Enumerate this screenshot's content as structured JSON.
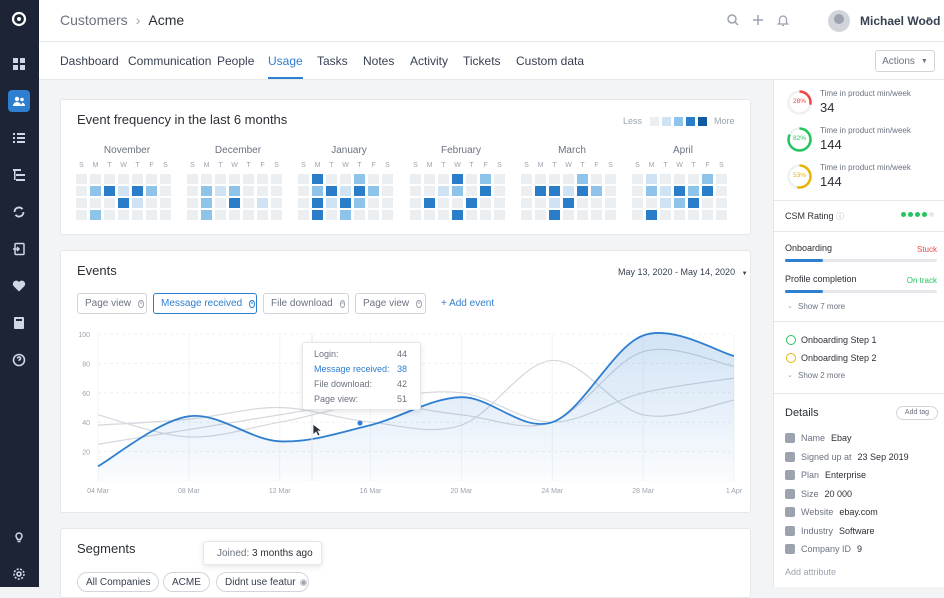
{
  "breadcrumb": {
    "parent": "Customers",
    "current": "Acme"
  },
  "user": {
    "name": "Michael Wood"
  },
  "tabs": [
    {
      "label": "Dashboard"
    },
    {
      "label": "Communication"
    },
    {
      "label": "People"
    },
    {
      "label": "Usage"
    },
    {
      "label": "Tasks"
    },
    {
      "label": "Notes"
    },
    {
      "label": "Activity"
    },
    {
      "label": "Tickets"
    },
    {
      "label": "Custom data"
    }
  ],
  "active_tab": "Usage",
  "actions_label": "Actions",
  "heatmap": {
    "title": "Event frequency in the last 6 months",
    "legend_less": "Less",
    "legend_more": "More",
    "weekdays": [
      "S",
      "M",
      "T",
      "W",
      "T",
      "F",
      "S"
    ],
    "months": [
      {
        "name": "November",
        "grid": [
          [
            0,
            0,
            0,
            0,
            0,
            0,
            0
          ],
          [
            0,
            2,
            3,
            1,
            3,
            2,
            0
          ],
          [
            0,
            0,
            0,
            3,
            1,
            0,
            0
          ],
          [
            0,
            2,
            0,
            0,
            0,
            0,
            0
          ]
        ]
      },
      {
        "name": "December",
        "grid": [
          [
            0,
            0,
            0,
            0,
            0,
            0,
            0
          ],
          [
            0,
            2,
            1,
            2,
            0,
            0,
            0
          ],
          [
            0,
            2,
            0,
            3,
            0,
            1,
            0
          ],
          [
            0,
            2,
            0,
            0,
            0,
            0,
            0
          ]
        ]
      },
      {
        "name": "January",
        "grid": [
          [
            0,
            3,
            0,
            0,
            2,
            0,
            0
          ],
          [
            0,
            2,
            3,
            1,
            3,
            2,
            0
          ],
          [
            0,
            3,
            1,
            3,
            2,
            0,
            0
          ],
          [
            0,
            3,
            0,
            2,
            0,
            0,
            0
          ]
        ]
      },
      {
        "name": "February",
        "grid": [
          [
            0,
            0,
            0,
            3,
            0,
            2,
            0
          ],
          [
            0,
            0,
            1,
            2,
            0,
            3,
            0
          ],
          [
            0,
            3,
            0,
            0,
            3,
            0,
            0
          ],
          [
            0,
            0,
            0,
            3,
            0,
            0,
            0
          ]
        ]
      },
      {
        "name": "March",
        "grid": [
          [
            0,
            0,
            0,
            0,
            2,
            0,
            0
          ],
          [
            0,
            3,
            3,
            1,
            3,
            2,
            0
          ],
          [
            0,
            0,
            1,
            3,
            0,
            0,
            0
          ],
          [
            0,
            0,
            3,
            0,
            0,
            0,
            0
          ]
        ]
      },
      {
        "name": "April",
        "grid": [
          [
            0,
            1,
            0,
            0,
            0,
            2,
            0
          ],
          [
            0,
            2,
            1,
            3,
            2,
            3,
            0
          ],
          [
            0,
            0,
            1,
            2,
            3,
            0,
            0
          ],
          [
            0,
            3,
            0,
            0,
            0,
            0,
            0
          ]
        ]
      }
    ]
  },
  "events": {
    "title": "Events",
    "date_range": "May 13, 2020 - May 14, 2020",
    "chips": [
      {
        "label": "Page view",
        "active": false
      },
      {
        "label": "Message received",
        "active": true
      },
      {
        "label": "File download",
        "active": false
      },
      {
        "label": "Page view",
        "active": false
      }
    ],
    "add_event_label": "+ Add event",
    "tooltip": [
      {
        "label": "Login:",
        "value": "44"
      },
      {
        "label": "Message received:",
        "value": "38"
      },
      {
        "label": "File download:",
        "value": "42"
      },
      {
        "label": "Page view:",
        "value": "51"
      }
    ]
  },
  "chart_data": {
    "type": "line",
    "title": "",
    "xlabel": "",
    "ylabel": "",
    "ylim": [
      0,
      100
    ],
    "yticks": [
      20,
      40,
      60,
      80,
      100
    ],
    "x": [
      "04 Mar",
      "08 Mar",
      "12 Mar",
      "16 Mar",
      "20 Mar",
      "24 Mar",
      "28 Mar",
      "1 Apr"
    ],
    "series": [
      {
        "values": [
          10,
          44,
          27,
          38,
          57,
          40,
          99,
          85
        ]
      },
      {
        "values": [
          38,
          42,
          50,
          40,
          38,
          82,
          45,
          55
        ]
      },
      {
        "values": [
          45,
          30,
          40,
          52,
          45,
          40,
          88,
          78
        ]
      },
      {
        "values": [
          25,
          35,
          45,
          55,
          60,
          40,
          60,
          70
        ]
      }
    ],
    "grid": true
  },
  "right_panel": {
    "metrics": [
      {
        "percent": "28%",
        "label": "Time in product min/week",
        "value": "34",
        "color": "#ef4444"
      },
      {
        "percent": "82%",
        "label": "Time in product min/week",
        "value": "144",
        "color": "#22c55e"
      },
      {
        "percent": "53%",
        "label": "Time in product min/week",
        "value": "144",
        "color": "#eab308"
      }
    ],
    "csm_rating": "CSM Rating",
    "progress": [
      {
        "label": "Onboarding",
        "status": "Stuck",
        "status_color": "#ef4444",
        "fraction": 0.25
      },
      {
        "label": "Profile completion",
        "status": "On track",
        "status_color": "#22c55e",
        "fraction": 0.25
      }
    ],
    "show_more_1": "Show 7 more",
    "steps": [
      {
        "label": "Onboarding Step 1",
        "state": "done"
      },
      {
        "label": "Onboarding Step 2",
        "state": "pending"
      }
    ],
    "show_more_2": "Show 2 more",
    "details_title": "Details",
    "add_tag": "Add tag",
    "details": [
      {
        "key": "Name",
        "value": "Ebay"
      },
      {
        "key": "Signed up at",
        "value": "23 Sep 2019"
      },
      {
        "key": "Plan",
        "value": "Enterprise"
      },
      {
        "key": "Size",
        "value": "20 000"
      },
      {
        "key": "Website",
        "value": "ebay.com"
      },
      {
        "key": "Industry",
        "value": "Software"
      },
      {
        "key": "Company ID",
        "value": "9"
      }
    ],
    "add_attribute": "Add attribute"
  },
  "segments": {
    "title": "Segments",
    "chips": [
      "All Companies",
      "ACME",
      "Didnt use featur"
    ],
    "joined_label": "Joined:",
    "joined_value": "3 months ago"
  }
}
